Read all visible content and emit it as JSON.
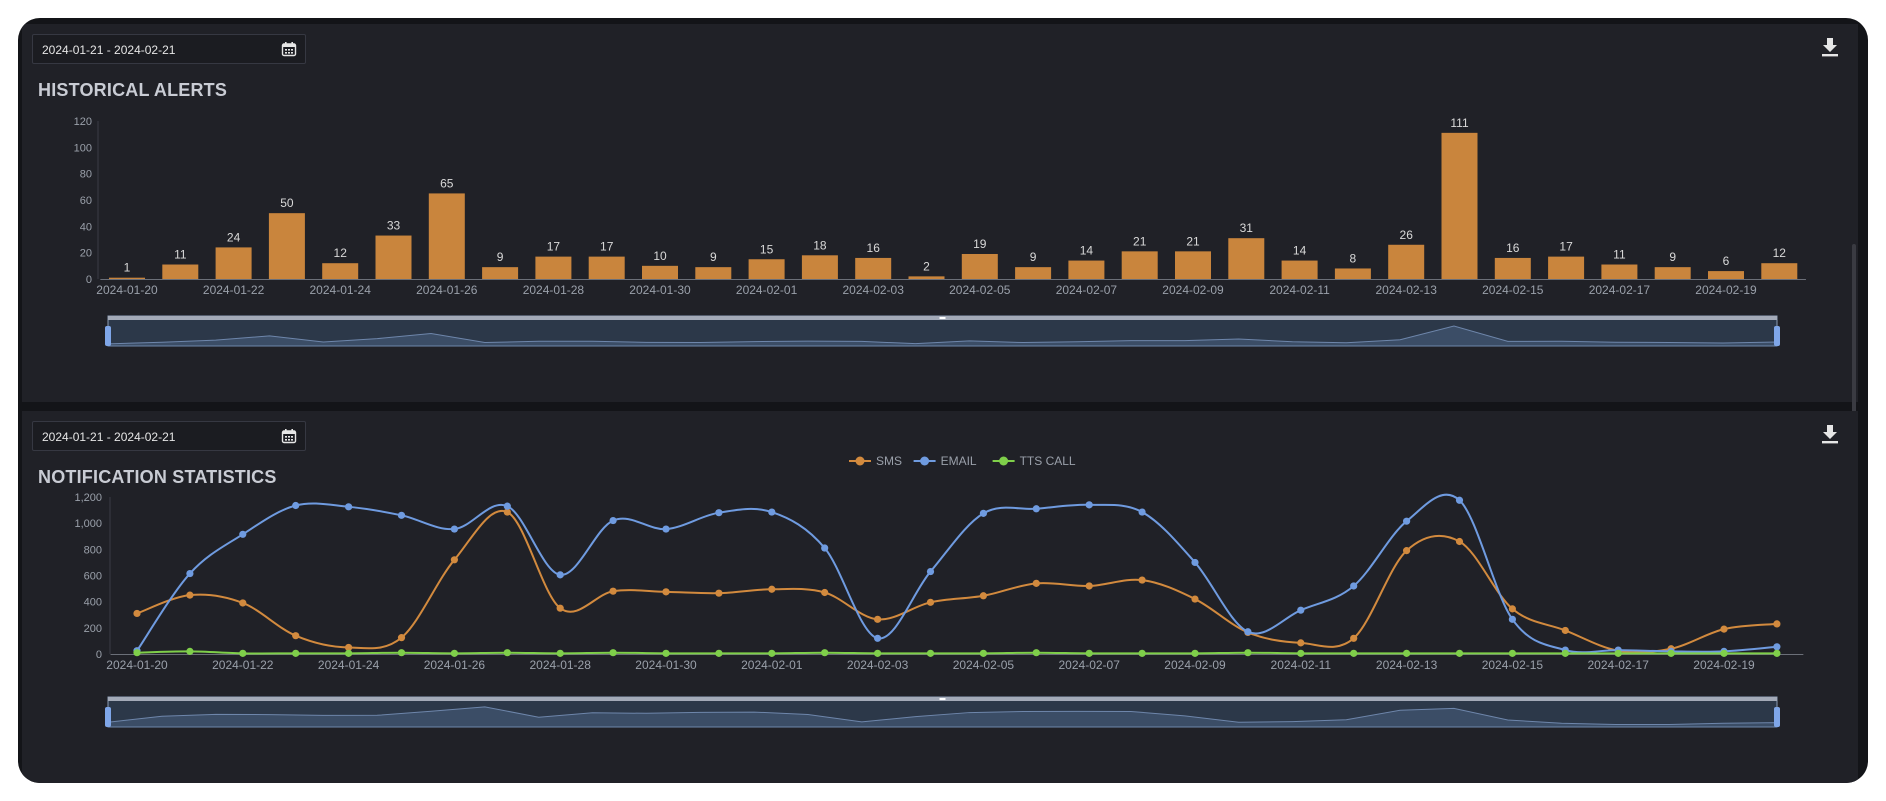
{
  "panels": [
    {
      "date_range": "2024-01-21 - 2024-02-21",
      "title": "HISTORICAL ALERTS"
    },
    {
      "date_range": "2024-01-21 - 2024-02-21",
      "title": "NOTIFICATION STATISTICS"
    }
  ],
  "icons": {
    "calendar": "calendar-icon",
    "download": "download-icon"
  },
  "colors": {
    "bar": "#c9853d",
    "sms": "#d28a3e",
    "email": "#6f9be0",
    "tts": "#7fcf4a",
    "grid": "#2f3038",
    "axis_text": "#9aa0aa",
    "label_text": "#d9d9d9"
  },
  "chart_data": [
    {
      "type": "bar",
      "title": "HISTORICAL ALERTS",
      "categories": [
        "2024-01-20",
        "2024-01-21",
        "2024-01-22",
        "2024-01-23",
        "2024-01-24",
        "2024-01-25",
        "2024-01-26",
        "2024-01-27",
        "2024-01-28",
        "2024-01-29",
        "2024-01-30",
        "2024-01-31",
        "2024-02-01",
        "2024-02-02",
        "2024-02-03",
        "2024-02-04",
        "2024-02-05",
        "2024-02-06",
        "2024-02-07",
        "2024-02-08",
        "2024-02-09",
        "2024-02-10",
        "2024-02-11",
        "2024-02-12",
        "2024-02-13",
        "2024-02-14",
        "2024-02-15",
        "2024-02-16",
        "2024-02-17",
        "2024-02-18",
        "2024-02-19",
        "2024-02-20"
      ],
      "values": [
        1,
        11,
        24,
        50,
        12,
        33,
        65,
        9,
        17,
        17,
        10,
        9,
        15,
        18,
        16,
        2,
        19,
        9,
        14,
        21,
        21,
        31,
        14,
        8,
        26,
        111,
        16,
        17,
        11,
        9,
        6,
        12
      ],
      "x_tick_labels": [
        "2024-01-20",
        "2024-01-22",
        "2024-01-24",
        "2024-01-26",
        "2024-01-28",
        "2024-01-30",
        "2024-02-01",
        "2024-02-03",
        "2024-02-05",
        "2024-02-07",
        "2024-02-09",
        "2024-02-11",
        "2024-02-13",
        "2024-02-15",
        "2024-02-17",
        "2024-02-19"
      ],
      "y_ticks": [
        0,
        20,
        40,
        60,
        80,
        100,
        120
      ],
      "ylim": [
        0,
        120
      ],
      "data_labels": true,
      "grid": false,
      "zoom_slider": true
    },
    {
      "type": "line",
      "title": "NOTIFICATION STATISTICS",
      "x": [
        "2024-01-20",
        "2024-01-21",
        "2024-01-22",
        "2024-01-23",
        "2024-01-24",
        "2024-01-25",
        "2024-01-26",
        "2024-01-27",
        "2024-01-28",
        "2024-01-29",
        "2024-01-30",
        "2024-01-31",
        "2024-02-01",
        "2024-02-02",
        "2024-02-03",
        "2024-02-04",
        "2024-02-05",
        "2024-02-06",
        "2024-02-07",
        "2024-02-08",
        "2024-02-09",
        "2024-02-10",
        "2024-02-11",
        "2024-02-12",
        "2024-02-13",
        "2024-02-14",
        "2024-02-15",
        "2024-02-16",
        "2024-02-17",
        "2024-02-18",
        "2024-02-19",
        "2024-02-20"
      ],
      "series": [
        {
          "name": "SMS",
          "values": [
            310,
            450,
            390,
            140,
            50,
            125,
            720,
            1085,
            350,
            480,
            475,
            465,
            495,
            470,
            265,
            395,
            445,
            540,
            520,
            565,
            420,
            165,
            85,
            120,
            790,
            860,
            345,
            180,
            25,
            40,
            190,
            230
          ]
        },
        {
          "name": "EMAIL",
          "values": [
            25,
            615,
            915,
            1135,
            1125,
            1060,
            955,
            1130,
            605,
            1020,
            955,
            1080,
            1085,
            810,
            120,
            630,
            1075,
            1110,
            1140,
            1085,
            700,
            170,
            335,
            520,
            1015,
            1175,
            265,
            30,
            30,
            20,
            20,
            55
          ]
        },
        {
          "name": "TTS CALL",
          "values": [
            10,
            20,
            5,
            5,
            5,
            10,
            5,
            10,
            5,
            10,
            5,
            5,
            5,
            10,
            5,
            5,
            5,
            10,
            5,
            5,
            5,
            10,
            5,
            5,
            5,
            5,
            5,
            5,
            5,
            5,
            5,
            5
          ]
        }
      ],
      "x_tick_labels": [
        "2024-01-20",
        "2024-01-22",
        "2024-01-24",
        "2024-01-26",
        "2024-01-28",
        "2024-01-30",
        "2024-02-01",
        "2024-02-03",
        "2024-02-05",
        "2024-02-07",
        "2024-02-09",
        "2024-02-11",
        "2024-02-13",
        "2024-02-15",
        "2024-02-17",
        "2024-02-19"
      ],
      "y_ticks": [
        "0",
        "200",
        "400",
        "600",
        "800",
        "1,000",
        "1,200"
      ],
      "ylim": [
        0,
        1200
      ],
      "legend": "top-center",
      "grid": false,
      "zoom_slider": true
    }
  ]
}
